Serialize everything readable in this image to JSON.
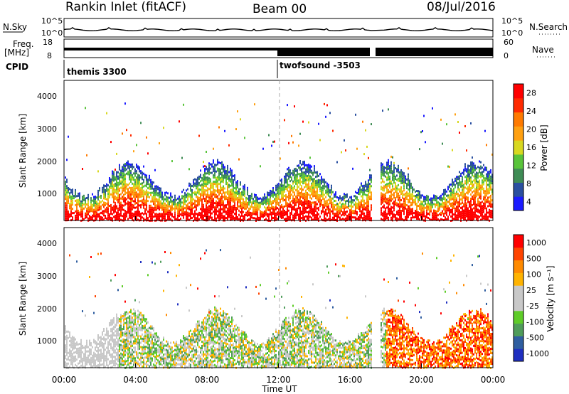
{
  "header": {
    "station": "Rankin Inlet (fitACF)",
    "beam": "Beam 00",
    "date": "08/Jul/2016"
  },
  "top_panels": {
    "nsky_label": "N.Sky",
    "nsearch_label": "N.Search",
    "noise_ticks": [
      "10^5",
      "10^0"
    ],
    "freq_label_1": "Freq.",
    "freq_label_2": "[MHz]",
    "freq_ticks": [
      "18",
      "8"
    ],
    "nave_label": "Nave",
    "nave_ticks": [
      "60",
      "0"
    ],
    "cpid_label": "CPID",
    "cpid_programs": [
      {
        "name": "themis 3300",
        "start_hour": 0
      },
      {
        "name": "twofsound -3503",
        "start_hour": 12
      }
    ],
    "data_gap_hours": [
      17.2,
      17.4
    ]
  },
  "colors": {
    "power": [
      "#1b1bff",
      "#2a4fa0",
      "#3f8c55",
      "#59c43a",
      "#d8d820",
      "#ffa010",
      "#ff7a00",
      "#ff2a00",
      "#ff0000"
    ],
    "velocity": [
      "#ff0000",
      "#ff4400",
      "#ff8a00",
      "#ffb300",
      "#c8c8c8",
      "#c8c8c8",
      "#5ecc28",
      "#4f9c5a",
      "#2f5ea0",
      "#1f2fc0"
    ],
    "cursor": "#aaaaaa"
  },
  "chart_data": [
    {
      "type": "heatmap",
      "name": "Power",
      "colorbar_label": "Power [dB]",
      "colorbar_ticks": [
        "28",
        "24",
        "20",
        "16",
        "12",
        "8",
        "4"
      ],
      "colorbar_range": [
        0,
        30
      ],
      "ylabel": "Slant Range [km]",
      "yticks": [
        "4000",
        "3000",
        "2000",
        "1000"
      ],
      "ylim": [
        180,
        4500
      ],
      "xlim": [
        0,
        24
      ],
      "grid": false,
      "marked_time_hour": 12
    },
    {
      "type": "heatmap",
      "name": "Velocity",
      "colorbar_label": "Velocity [m s⁻¹]",
      "colorbar_ticks": [
        "1000",
        "500",
        "100",
        "25",
        "-25",
        "-100",
        "-500",
        "-1000"
      ],
      "ylabel": "Slant Range [km]",
      "yticks": [
        "4000",
        "3000",
        "2000",
        "1000"
      ],
      "ylim": [
        180,
        4500
      ],
      "xlim": [
        0,
        24
      ],
      "xticks": [
        "00:00",
        "04:00",
        "08:00",
        "12:00",
        "16:00",
        "20:00",
        "00:00"
      ],
      "xlabel": "Time UT",
      "grid": false,
      "marked_time_hour": 12
    }
  ]
}
